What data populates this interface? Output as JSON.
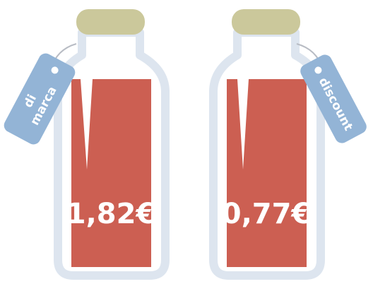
{
  "bottles": [
    {
      "tag_lines": [
        "di",
        "marca"
      ],
      "price": "1,82€"
    },
    {
      "tag_lines": [
        "discount"
      ],
      "price": "0,77€"
    }
  ]
}
